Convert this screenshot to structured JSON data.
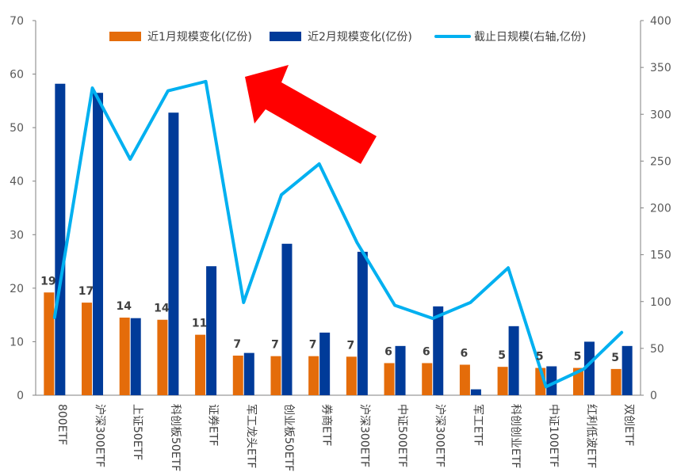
{
  "chart_data": {
    "type": "bar",
    "categories": [
      "800ETF",
      "沪深300ETF",
      "上证50ETF",
      "科创板50ETF",
      "证券ETF",
      "军工龙头ETF",
      "创业板50ETF",
      "券商ETF",
      "沪深300ETF",
      "中证500ETF",
      "沪深300ETF",
      "军工ETF",
      "科创创业ETF",
      "中证100ETF",
      "红利低波ETF",
      "双创ETF"
    ],
    "series": [
      {
        "name": "近1月规模变化(亿份)",
        "type": "bar",
        "axis": "left",
        "color": "#E46C0A",
        "values": [
          19.2,
          17.3,
          14.5,
          14.1,
          11.3,
          7.4,
          7.3,
          7.3,
          7.2,
          6.0,
          6.0,
          5.7,
          5.3,
          5.1,
          5.1,
          4.9
        ],
        "labels": [
          "19",
          "17",
          "14",
          "14",
          "11",
          "7",
          "7",
          "7",
          "7",
          "6",
          "6",
          "6",
          "5",
          "5",
          "5",
          "5"
        ]
      },
      {
        "name": "近2月规模变化(亿份)",
        "type": "bar",
        "axis": "left",
        "color": "#003B99",
        "values": [
          58.2,
          56.5,
          14.4,
          52.8,
          24.1,
          7.9,
          28.3,
          11.7,
          26.8,
          9.2,
          16.6,
          1.1,
          12.9,
          5.4,
          10.0,
          9.2
        ]
      },
      {
        "name": "截止日规模(右轴,亿份)",
        "type": "line",
        "axis": "right",
        "color": "#00B0F0",
        "values": [
          83,
          328,
          252,
          325,
          335,
          99,
          214,
          247,
          163,
          96,
          82,
          99,
          136,
          9,
          28,
          67
        ]
      }
    ],
    "y_left": {
      "min": 0,
      "max": 70,
      "ticks": [
        0,
        10,
        20,
        30,
        40,
        50,
        60,
        70
      ]
    },
    "y_right": {
      "min": 0,
      "max": 400,
      "ticks": [
        0,
        50,
        100,
        150,
        200,
        250,
        300,
        350,
        400
      ]
    },
    "legend_position": "top",
    "annotation": {
      "kind": "arrow",
      "color": "#FF0000"
    },
    "grid": false
  }
}
